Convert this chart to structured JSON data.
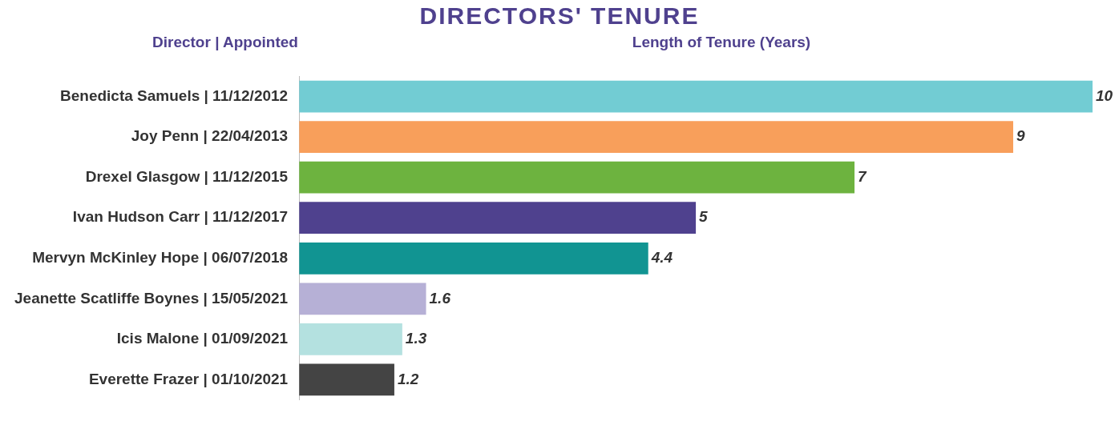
{
  "chart_data": {
    "type": "bar",
    "orientation": "horizontal",
    "title": "DIRECTORS' TENURE",
    "ylabel": "Director | Appointed",
    "xlabel": "Length of Tenure (Years)",
    "categories": [
      "Benedicta Samuels | 11/12/2012",
      "Joy Penn | 22/04/2013",
      "Drexel Glasgow | 11/12/2015",
      "Ivan Hudson Carr | 11/12/2017",
      "Mervyn McKinley Hope | 06/07/2018",
      "Jeanette Scatliffe Boynes | 15/05/2021",
      "Icis Malone | 01/09/2021",
      "Everette Frazer | 01/10/2021"
    ],
    "values": [
      10,
      9,
      7,
      5,
      4.4,
      1.6,
      1.3,
      1.2
    ],
    "colors": [
      "#72ccd3",
      "#f89f5b",
      "#6db33f",
      "#4f418e",
      "#119492",
      "#b6b0d6",
      "#b4e1e0",
      "#444444"
    ],
    "data_labels": true,
    "grid": false,
    "legend": false
  }
}
